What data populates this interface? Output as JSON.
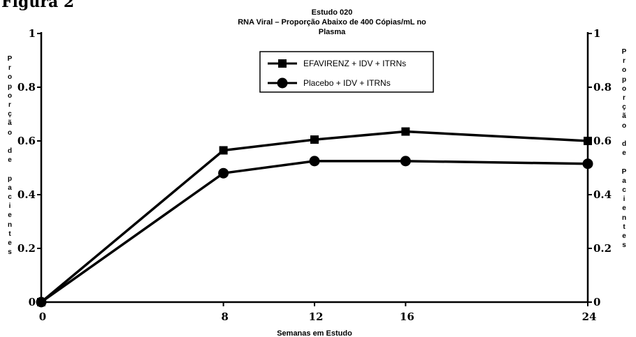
{
  "figure_label": "Figura 2",
  "chart_data": {
    "type": "line",
    "title_lines": [
      "Estudo 020",
      "RNA Viral – Proporção Abaixo de 400 Cópias/mL no",
      "Plasma"
    ],
    "xlabel": "Semanas em Estudo",
    "ylabel_left": "Proporção de pacientes",
    "ylabel_right": "Proporção de Pacientes",
    "x_ticks": [
      "0",
      "8",
      "12",
      "16",
      "24"
    ],
    "y_ticks_left": [
      "0",
      "0.2",
      "0.4",
      "0.6",
      "0.8",
      "1"
    ],
    "y_ticks_right": [
      "0",
      "0.2",
      "0.4",
      "0.6",
      "0.8",
      "1"
    ],
    "xlim": [
      0,
      24
    ],
    "ylim": [
      0,
      1
    ],
    "legend_position": "top-center",
    "series": [
      {
        "name": "EFAVIRENZ + IDV + ITRNs",
        "marker": "square",
        "color": "#000000",
        "x": [
          0,
          8,
          12,
          16,
          24
        ],
        "y": [
          0,
          0.565,
          0.605,
          0.635,
          0.6
        ]
      },
      {
        "name": "Placebo + IDV + ITRNs",
        "marker": "circle",
        "color": "#000000",
        "x": [
          0,
          8,
          12,
          16,
          24
        ],
        "y": [
          0,
          0.48,
          0.525,
          0.525,
          0.515
        ]
      }
    ]
  }
}
